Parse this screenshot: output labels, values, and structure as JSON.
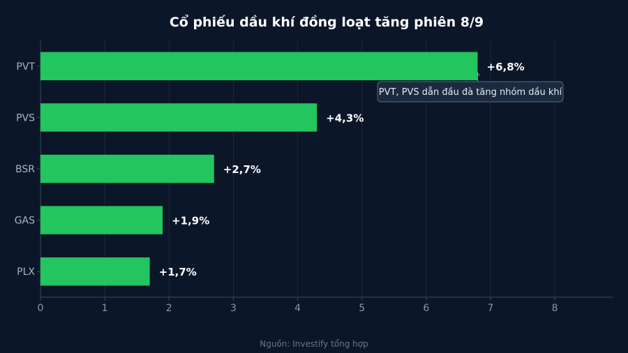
{
  "chart_data": {
    "type": "bar",
    "orientation": "horizontal",
    "title": "Cổ phiếu dầu khí đồng loạt tăng phiên 8/9",
    "categories": [
      "PVT",
      "PVS",
      "BSR",
      "GAS",
      "PLX"
    ],
    "values": [
      6.8,
      4.3,
      2.7,
      1.9,
      1.7
    ],
    "value_labels": [
      "+6,8%",
      "+4,3%",
      "+2,7%",
      "+1,9%",
      "+1,7%"
    ],
    "xlim": [
      0,
      8.9
    ],
    "xticks": [
      "0",
      "1",
      "2",
      "3",
      "4",
      "5",
      "6",
      "7",
      "8"
    ],
    "grid": "vertical",
    "legend": "none",
    "annotation": {
      "text": "PVT, PVS dẫn đầu đà tăng nhóm dầu khí",
      "target_category": "PVT"
    },
    "source": "Nguồn: Investify tổng hợp"
  },
  "colors": {
    "background": "#0b1628",
    "bar": "#22c55e",
    "grid": "#1c2a3e",
    "axis": "#3a4a60",
    "annotation_bg": "#1b2a3f",
    "annotation_border": "#5a6a80"
  }
}
